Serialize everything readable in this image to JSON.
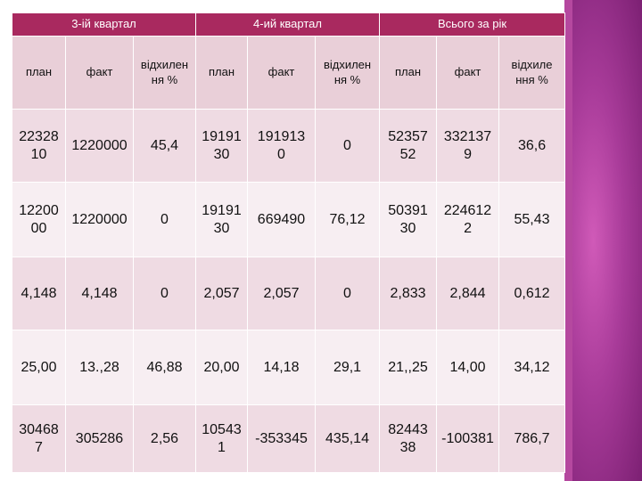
{
  "header": {
    "groups": [
      "3-ій квартал",
      "4-ий квартал",
      "Всього за рік"
    ]
  },
  "subheader": {
    "cols": [
      "план",
      "факт",
      "відхилен\nня %",
      "план",
      "факт",
      "відхилен\nня %",
      "план",
      "факт",
      "відхиле\nння %"
    ]
  },
  "rows": [
    [
      "22328\n10",
      "1220000",
      "45,4",
      "19191\n30",
      "191913\n0",
      "0",
      "52357\n52",
      "332137\n9",
      "36,6"
    ],
    [
      "12200\n00",
      "1220000",
      "0",
      "19191\n30",
      "669490",
      "76,12",
      "50391\n30",
      "224612\n2",
      "55,43"
    ],
    [
      "4,148",
      "4,148",
      "0",
      "2,057",
      "2,057",
      "0",
      "2,833",
      "2,844",
      "0,612"
    ],
    [
      "25,00",
      "13.,28",
      "46,88",
      "20,00",
      "14,18",
      "29,1",
      "21,,25",
      "14,00",
      "34,12"
    ],
    [
      "30468\n7",
      "305286",
      "2,56",
      "10543\n1",
      "-353345",
      "435,14",
      "82443\n38",
      "-100381",
      "786,7"
    ]
  ],
  "colors": {
    "header_bg": "#a9295f",
    "subheader_bg": "#e9cfd8",
    "row_odd_bg": "#efdbe3",
    "row_even_bg": "#f7eef2",
    "decor": "#b5489f"
  }
}
